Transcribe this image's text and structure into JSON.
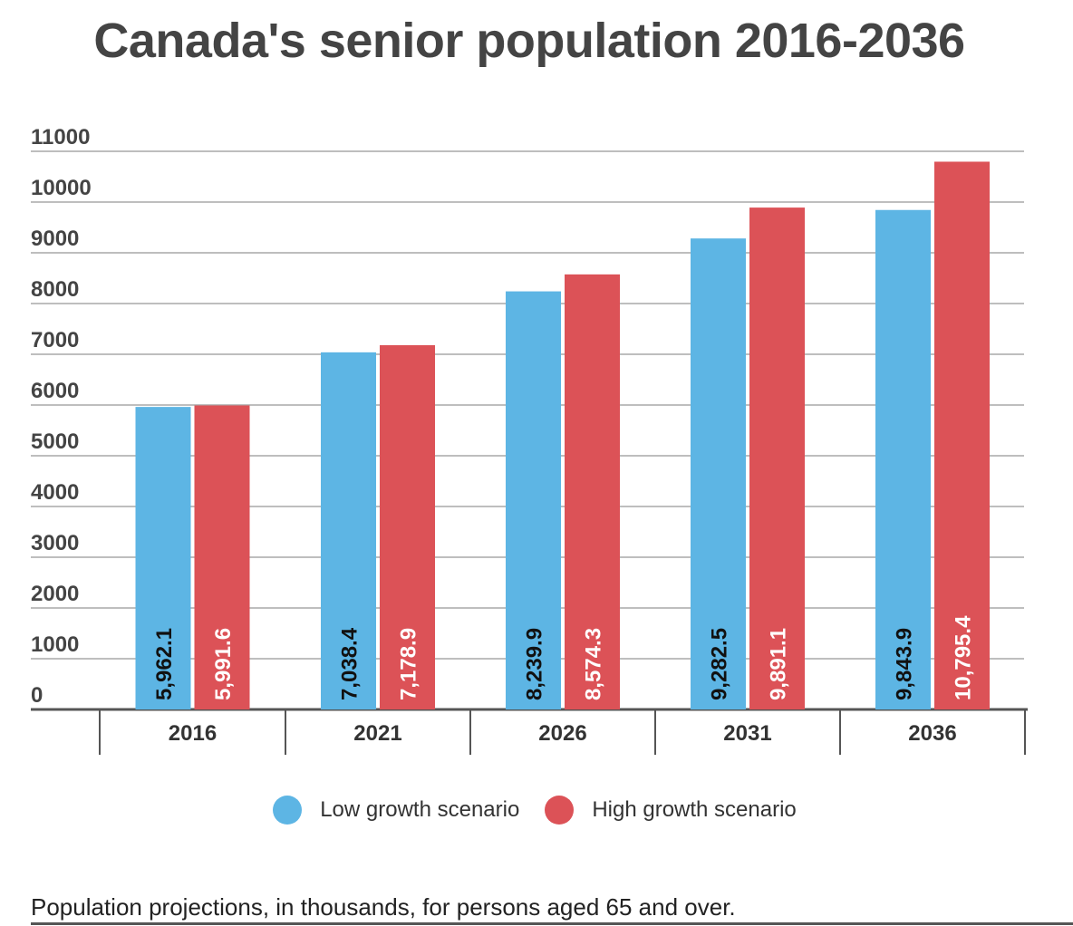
{
  "chart_data": {
    "type": "bar",
    "title": "Canada's senior population 2016-2036",
    "categories": [
      "2016",
      "2021",
      "2026",
      "2031",
      "2036"
    ],
    "series": [
      {
        "name": "Low growth scenario",
        "color": "#5DB5E4",
        "values": [
          5962.1,
          7038.4,
          8239.9,
          9282.5,
          9843.9
        ],
        "labels": [
          "5,962.1",
          "7,038.4",
          "8,239.9",
          "9,282.5",
          "9,843.9"
        ],
        "label_color": "#111111"
      },
      {
        "name": "High growth scenario",
        "color": "#DC5257",
        "values": [
          5991.6,
          7178.9,
          8574.3,
          9891.1,
          10795.4
        ],
        "labels": [
          "5,991.6",
          "7,178.9",
          "8,574.3",
          "9,891.1",
          "10,795.4"
        ],
        "label_color": "#ffffff"
      }
    ],
    "yticks": [
      "0",
      "1000",
      "2000",
      "3000",
      "4000",
      "5000",
      "6000",
      "7000",
      "8000",
      "9000",
      "10000",
      "11000"
    ],
    "ylim": [
      0,
      11000
    ],
    "grid": true,
    "legend": "bottom",
    "xlabel": "",
    "ylabel": ""
  },
  "footnote": "Population projections, in thousands, for persons aged 65 and over."
}
